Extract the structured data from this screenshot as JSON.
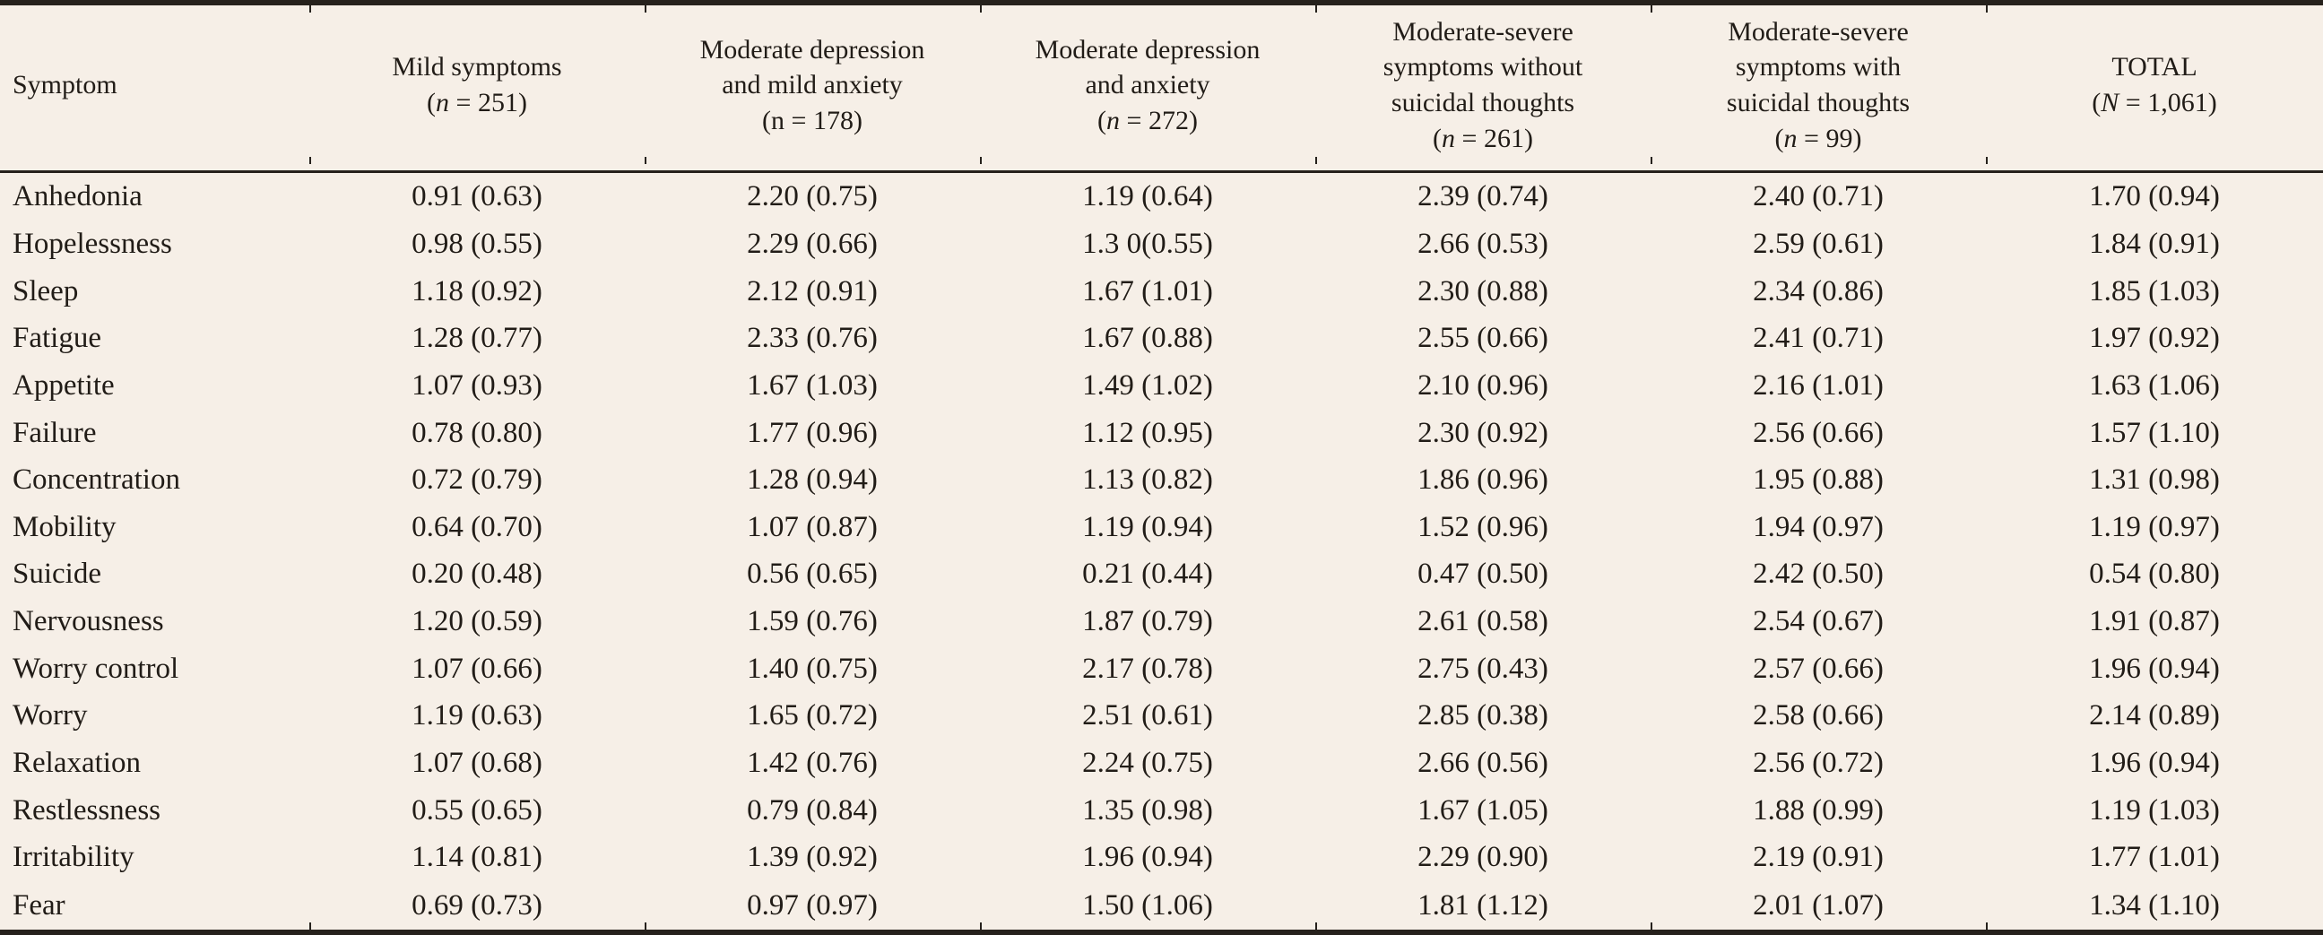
{
  "colors": {
    "background": "#f6efe7",
    "rule": "#26211c",
    "text": "#211c17"
  },
  "table": {
    "header": {
      "symptom_label": "Symptom",
      "groups": [
        {
          "lines": [
            "Mild symptoms"
          ],
          "n_parts": [
            "(",
            "n",
            " = 251)"
          ],
          "n_italic": true
        },
        {
          "lines": [
            "Moderate depression",
            "and mild anxiety"
          ],
          "n_parts": [
            "(",
            "n",
            " = 178)"
          ],
          "n_italic": false
        },
        {
          "lines": [
            "Moderate depression",
            "and anxiety"
          ],
          "n_parts": [
            "(",
            "n",
            " = 272)"
          ],
          "n_italic": true
        },
        {
          "lines": [
            "Moderate-severe",
            "symptoms without",
            "suicidal thoughts"
          ],
          "n_parts": [
            "(",
            "n",
            " = 261)"
          ],
          "n_italic": true
        },
        {
          "lines": [
            "Moderate-severe",
            "symptoms with",
            "suicidal thoughts"
          ],
          "n_parts": [
            "(",
            "n",
            " = 99)"
          ],
          "n_italic": true
        },
        {
          "lines": [
            "TOTAL"
          ],
          "n_parts": [
            "(",
            "N",
            " = 1,061)"
          ],
          "n_italic": true
        }
      ]
    },
    "rows": [
      {
        "symptom": "Anhedonia",
        "values": [
          "0.91 (0.63)",
          "2.20 (0.75)",
          "1.19 (0.64)",
          "2.39 (0.74)",
          "2.40 (0.71)",
          "1.70 (0.94)"
        ]
      },
      {
        "symptom": "Hopelessness",
        "values": [
          "0.98 (0.55)",
          "2.29 (0.66)",
          "1.3 0(0.55)",
          "2.66 (0.53)",
          "2.59 (0.61)",
          "1.84 (0.91)"
        ]
      },
      {
        "symptom": "Sleep",
        "values": [
          "1.18 (0.92)",
          "2.12 (0.91)",
          "1.67 (1.01)",
          "2.30 (0.88)",
          "2.34 (0.86)",
          "1.85 (1.03)"
        ]
      },
      {
        "symptom": "Fatigue",
        "values": [
          "1.28 (0.77)",
          "2.33 (0.76)",
          "1.67 (0.88)",
          "2.55 (0.66)",
          "2.41 (0.71)",
          "1.97 (0.92)"
        ]
      },
      {
        "symptom": "Appetite",
        "values": [
          "1.07 (0.93)",
          "1.67 (1.03)",
          "1.49 (1.02)",
          "2.10 (0.96)",
          "2.16 (1.01)",
          "1.63 (1.06)"
        ]
      },
      {
        "symptom": "Failure",
        "values": [
          "0.78 (0.80)",
          "1.77 (0.96)",
          "1.12 (0.95)",
          "2.30 (0.92)",
          "2.56 (0.66)",
          "1.57 (1.10)"
        ]
      },
      {
        "symptom": "Concentration",
        "values": [
          "0.72 (0.79)",
          "1.28 (0.94)",
          "1.13 (0.82)",
          "1.86 (0.96)",
          "1.95 (0.88)",
          "1.31 (0.98)"
        ]
      },
      {
        "symptom": "Mobility",
        "values": [
          "0.64 (0.70)",
          "1.07 (0.87)",
          "1.19 (0.94)",
          "1.52 (0.96)",
          "1.94 (0.97)",
          "1.19 (0.97)"
        ]
      },
      {
        "symptom": "Suicide",
        "values": [
          "0.20 (0.48)",
          "0.56 (0.65)",
          "0.21 (0.44)",
          "0.47 (0.50)",
          "2.42 (0.50)",
          "0.54 (0.80)"
        ]
      },
      {
        "symptom": "Nervousness",
        "values": [
          "1.20 (0.59)",
          "1.59 (0.76)",
          "1.87 (0.79)",
          "2.61 (0.58)",
          "2.54 (0.67)",
          "1.91 (0.87)"
        ]
      },
      {
        "symptom": "Worry control",
        "values": [
          "1.07 (0.66)",
          "1.40 (0.75)",
          "2.17 (0.78)",
          "2.75 (0.43)",
          "2.57 (0.66)",
          "1.96 (0.94)"
        ]
      },
      {
        "symptom": "Worry",
        "values": [
          "1.19 (0.63)",
          "1.65 (0.72)",
          "2.51 (0.61)",
          "2.85 (0.38)",
          "2.58 (0.66)",
          "2.14 (0.89)"
        ]
      },
      {
        "symptom": "Relaxation",
        "values": [
          "1.07 (0.68)",
          "1.42 (0.76)",
          "2.24 (0.75)",
          "2.66 (0.56)",
          "2.56 (0.72)",
          "1.96 (0.94)"
        ]
      },
      {
        "symptom": "Restlessness",
        "values": [
          "0.55 (0.65)",
          "0.79 (0.84)",
          "1.35 (0.98)",
          "1.67 (1.05)",
          "1.88 (0.99)",
          "1.19 (1.03)"
        ]
      },
      {
        "symptom": "Irritability",
        "values": [
          "1.14 (0.81)",
          "1.39 (0.92)",
          "1.96 (0.94)",
          "2.29 (0.90)",
          "2.19 (0.91)",
          "1.77 (1.01)"
        ]
      },
      {
        "symptom": "Fear",
        "values": [
          "0.69 (0.73)",
          "0.97 (0.97)",
          "1.50 (1.06)",
          "1.81 (1.12)",
          "2.01 (1.07)",
          "1.34 (1.10)"
        ]
      }
    ]
  }
}
